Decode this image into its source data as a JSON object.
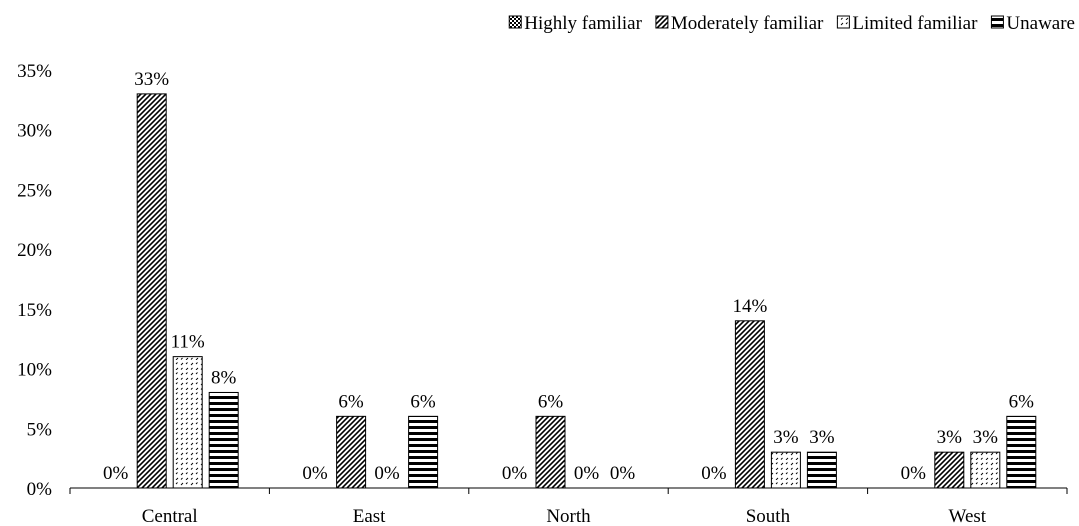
{
  "chart_data": {
    "type": "bar",
    "categories": [
      "Central",
      "East",
      "North",
      "South",
      "West"
    ],
    "series": [
      {
        "name": "Highly familiar",
        "pattern": "checker",
        "values": [
          0,
          0,
          0,
          0,
          0
        ],
        "labels": [
          "0%",
          "0%",
          "0%",
          "0%",
          "0%"
        ]
      },
      {
        "name": "Moderately familiar",
        "pattern": "diagonal",
        "values": [
          33,
          6,
          6,
          14,
          3
        ],
        "labels": [
          "33%",
          "6%",
          "6%",
          "14%",
          "3%"
        ]
      },
      {
        "name": "Limited familiar",
        "pattern": "dotted",
        "values": [
          11,
          0,
          0,
          3,
          3
        ],
        "labels": [
          "11%",
          "0%",
          "0%",
          "3%",
          "3%"
        ]
      },
      {
        "name": "Unaware",
        "pattern": "horizontal",
        "values": [
          8,
          6,
          0,
          3,
          6
        ],
        "labels": [
          "8%",
          "6%",
          "0%",
          "3%",
          "6%"
        ]
      }
    ],
    "y_ticks": [
      "0%",
      "5%",
      "10%",
      "15%",
      "20%",
      "25%",
      "30%",
      "35%"
    ],
    "ylim": [
      0,
      35
    ],
    "grid": false,
    "legend_position": "top-right",
    "colors": {
      "bar_stroke": "#000000",
      "fill": "#000000",
      "background": "#ffffff"
    }
  }
}
